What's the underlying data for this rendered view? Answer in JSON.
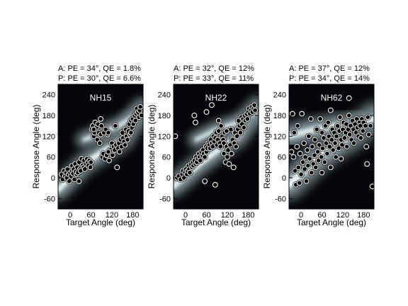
{
  "colors": {
    "background": "#ffffff",
    "plot_background": "#05050a",
    "density_core": "#f4fbfb",
    "density_mid": "#9fb7bd",
    "density_low": "#4a5257",
    "marker_fill": "#ffffff",
    "marker_edge": "#000000",
    "title_text": "#ffffff"
  },
  "chart_data": [
    {
      "type": "scatter",
      "title": "NH15",
      "stats": [
        "A: PE = 34°, QE = 1.8%",
        "P: PE = 30°, QE = 6.6%"
      ],
      "xlabel": "Target Angle (deg)",
      "ylabel": "Response Angle (deg)",
      "xlim": [
        -35,
        210
      ],
      "ylim": [
        -90,
        270
      ],
      "xticks": [
        0,
        60,
        120,
        180
      ],
      "yticks": [
        -60,
        0,
        60,
        120,
        180,
        240
      ],
      "xtick_labels": [
        "0",
        "60",
        "120",
        "180"
      ],
      "ytick_labels": [
        "-60",
        "0",
        "60",
        "120",
        "180",
        "240"
      ],
      "grid": false,
      "legend": "none",
      "background": "probability density (dark = low, light = high)",
      "density_bands": [
        {
          "path": [
            [
              -35,
              -35
            ],
            [
              40,
              40
            ],
            [
              100,
              80
            ],
            [
              150,
              110
            ],
            [
              210,
              200
            ]
          ],
          "width": 40
        },
        {
          "path": [
            [
              40,
              110
            ],
            [
              90,
              130
            ],
            [
              140,
              150
            ],
            [
              210,
              195
            ]
          ],
          "width": 30
        }
      ],
      "points": [
        [
          -25,
          10
        ],
        [
          -22,
          -5
        ],
        [
          -18,
          20
        ],
        [
          -15,
          5
        ],
        [
          -12,
          15
        ],
        [
          -10,
          0
        ],
        [
          -8,
          25
        ],
        [
          -5,
          10
        ],
        [
          -3,
          -10
        ],
        [
          0,
          15
        ],
        [
          2,
          5
        ],
        [
          5,
          20
        ],
        [
          5,
          35
        ],
        [
          8,
          12
        ],
        [
          10,
          25
        ],
        [
          12,
          -5
        ],
        [
          14,
          40
        ],
        [
          16,
          18
        ],
        [
          18,
          10
        ],
        [
          20,
          30
        ],
        [
          22,
          15
        ],
        [
          25,
          45
        ],
        [
          28,
          25
        ],
        [
          30,
          20
        ],
        [
          32,
          55
        ],
        [
          35,
          35
        ],
        [
          38,
          30
        ],
        [
          40,
          50
        ],
        [
          42,
          25
        ],
        [
          45,
          40
        ],
        [
          48,
          55
        ],
        [
          50,
          45
        ],
        [
          52,
          35
        ],
        [
          55,
          50
        ],
        [
          58,
          30
        ],
        [
          60,
          45
        ],
        [
          62,
          140
        ],
        [
          65,
          150
        ],
        [
          68,
          120
        ],
        [
          70,
          130
        ],
        [
          72,
          160
        ],
        [
          75,
          145
        ],
        [
          78,
          110
        ],
        [
          80,
          155
        ],
        [
          82,
          130
        ],
        [
          85,
          100
        ],
        [
          88,
          125
        ],
        [
          90,
          150
        ],
        [
          92,
          60
        ],
        [
          95,
          70
        ],
        [
          97,
          130
        ],
        [
          100,
          55
        ],
        [
          102,
          140
        ],
        [
          105,
          65
        ],
        [
          108,
          125
        ],
        [
          110,
          130
        ],
        [
          112,
          50
        ],
        [
          115,
          80
        ],
        [
          118,
          75
        ],
        [
          120,
          100
        ],
        [
          122,
          65
        ],
        [
          125,
          90
        ],
        [
          128,
          80
        ],
        [
          130,
          150
        ],
        [
          132,
          95
        ],
        [
          135,
          30
        ],
        [
          138,
          85
        ],
        [
          140,
          100
        ],
        [
          142,
          75
        ],
        [
          145,
          110
        ],
        [
          148,
          90
        ],
        [
          150,
          130
        ],
        [
          152,
          115
        ],
        [
          155,
          105
        ],
        [
          158,
          95
        ],
        [
          160,
          140
        ],
        [
          162,
          120
        ],
        [
          165,
          110
        ],
        [
          168,
          135
        ],
        [
          170,
          155
        ],
        [
          172,
          125
        ],
        [
          175,
          165
        ],
        [
          178,
          145
        ],
        [
          180,
          170
        ],
        [
          182,
          155
        ],
        [
          185,
          180
        ],
        [
          188,
          165
        ],
        [
          190,
          185
        ],
        [
          192,
          200
        ],
        [
          195,
          190
        ],
        [
          198,
          175
        ],
        [
          200,
          195
        ],
        [
          202,
          205
        ],
        [
          205,
          180
        ],
        [
          110,
          75
        ],
        [
          88,
          170
        ],
        [
          175,
          130
        ],
        [
          68,
          140
        ],
        [
          25,
          -10
        ]
      ]
    },
    {
      "type": "scatter",
      "title": "NH22",
      "stats": [
        "A: PE = 32°, QE = 12%",
        "P: PE = 33°, QE = 11%"
      ],
      "xlabel": "Target Angle (deg)",
      "ylabel": "Response Angle (deg)",
      "xlim": [
        -35,
        210
      ],
      "ylim": [
        -90,
        270
      ],
      "xticks": [
        0,
        60,
        120,
        180
      ],
      "yticks": [
        -60,
        0,
        60,
        120,
        180,
        240
      ],
      "xtick_labels": [
        "0",
        "60",
        "120",
        "180"
      ],
      "ytick_labels": [
        "-60",
        "0",
        "60",
        "120",
        "180",
        "240"
      ],
      "grid": false,
      "legend": "none",
      "background": "probability density (dark = low, light = high)",
      "density_bands": [
        {
          "path": [
            [
              -35,
              -25
            ],
            [
              40,
              40
            ],
            [
              100,
              85
            ],
            [
              150,
              120
            ],
            [
              210,
              205
            ]
          ],
          "width": 40
        },
        {
          "path": [
            [
              30,
              110
            ],
            [
              90,
              140
            ],
            [
              150,
              160
            ],
            [
              210,
              195
            ]
          ],
          "width": 30
        }
      ],
      "points": [
        [
          -30,
          120
        ],
        [
          -25,
          0
        ],
        [
          -20,
          5
        ],
        [
          -15,
          -5
        ],
        [
          -10,
          10
        ],
        [
          -8,
          20
        ],
        [
          -5,
          0
        ],
        [
          -2,
          15
        ],
        [
          0,
          25
        ],
        [
          3,
          10
        ],
        [
          5,
          20
        ],
        [
          8,
          35
        ],
        [
          10,
          25
        ],
        [
          12,
          15
        ],
        [
          15,
          40
        ],
        [
          18,
          30
        ],
        [
          20,
          45
        ],
        [
          22,
          35
        ],
        [
          25,
          50
        ],
        [
          28,
          40
        ],
        [
          30,
          60
        ],
        [
          32,
          45
        ],
        [
          35,
          55
        ],
        [
          38,
          70
        ],
        [
          40,
          60
        ],
        [
          42,
          50
        ],
        [
          45,
          75
        ],
        [
          48,
          65
        ],
        [
          50,
          80
        ],
        [
          52,
          70
        ],
        [
          55,
          60
        ],
        [
          58,
          90
        ],
        [
          60,
          75
        ],
        [
          62,
          85
        ],
        [
          65,
          100
        ],
        [
          68,
          95
        ],
        [
          70,
          85
        ],
        [
          72,
          110
        ],
        [
          75,
          100
        ],
        [
          78,
          90
        ],
        [
          80,
          120
        ],
        [
          82,
          105
        ],
        [
          85,
          115
        ],
        [
          88,
          130
        ],
        [
          90,
          95
        ],
        [
          92,
          110
        ],
        [
          95,
          135
        ],
        [
          98,
          100
        ],
        [
          100,
          90
        ],
        [
          102,
          150
        ],
        [
          105,
          120
        ],
        [
          108,
          110
        ],
        [
          110,
          100
        ],
        [
          112,
          130
        ],
        [
          115,
          45
        ],
        [
          118,
          90
        ],
        [
          120,
          60
        ],
        [
          122,
          80
        ],
        [
          125,
          40
        ],
        [
          128,
          95
        ],
        [
          130,
          140
        ],
        [
          132,
          70
        ],
        [
          135,
          110
        ],
        [
          138,
          30
        ],
        [
          140,
          100
        ],
        [
          142,
          130
        ],
        [
          145,
          90
        ],
        [
          148,
          120
        ],
        [
          150,
          140
        ],
        [
          152,
          165
        ],
        [
          155,
          150
        ],
        [
          158,
          130
        ],
        [
          160,
          175
        ],
        [
          162,
          155
        ],
        [
          165,
          170
        ],
        [
          168,
          145
        ],
        [
          170,
          180
        ],
        [
          172,
          165
        ],
        [
          175,
          185
        ],
        [
          178,
          170
        ],
        [
          180,
          190
        ],
        [
          182,
          200
        ],
        [
          185,
          185
        ],
        [
          188,
          195
        ],
        [
          190,
          205
        ],
        [
          192,
          190
        ],
        [
          195,
          200
        ],
        [
          198,
          210
        ],
        [
          200,
          195
        ],
        [
          60,
          190
        ],
        [
          25,
          180
        ],
        [
          28,
          160
        ],
        [
          75,
          210
        ],
        [
          55,
          -10
        ],
        [
          85,
          -20
        ],
        [
          118,
          135
        ],
        [
          95,
          165
        ],
        [
          110,
          70
        ]
      ]
    },
    {
      "type": "scatter",
      "title": "NH62",
      "stats": [
        "A: PE = 37°, QE = 12%",
        "P: PE = 34°, QE = 14%"
      ],
      "xlabel": "Target Angle (deg)",
      "ylabel": "Response Angle (deg)",
      "xlim": [
        -35,
        210
      ],
      "ylim": [
        -90,
        270
      ],
      "xticks": [
        0,
        60,
        120,
        180
      ],
      "yticks": [
        -60,
        0,
        60,
        120,
        180,
        240
      ],
      "xtick_labels": [
        "0",
        "60",
        "120",
        "180"
      ],
      "ytick_labels": [
        "-60",
        "0",
        "60",
        "120",
        "180",
        "240"
      ],
      "grid": false,
      "legend": "none",
      "background": "probability density (dark = low, light = high)",
      "density_bands": [
        {
          "path": [
            [
              -35,
              -20
            ],
            [
              40,
              50
            ],
            [
              100,
              95
            ],
            [
              150,
              125
            ],
            [
              210,
              175
            ]
          ],
          "width": 55
        },
        {
          "path": [
            [
              -35,
              120
            ],
            [
              40,
              140
            ],
            [
              100,
              150
            ],
            [
              150,
              155
            ],
            [
              210,
              170
            ]
          ],
          "width": 45
        }
      ],
      "points": [
        [
          -28,
          75
        ],
        [
          -25,
          185
        ],
        [
          -22,
          60
        ],
        [
          -20,
          130
        ],
        [
          -18,
          20
        ],
        [
          -15,
          -20
        ],
        [
          -12,
          90
        ],
        [
          -10,
          150
        ],
        [
          -8,
          30
        ],
        [
          -5,
          -15
        ],
        [
          -3,
          70
        ],
        [
          0,
          10
        ],
        [
          2,
          185
        ],
        [
          5,
          45
        ],
        [
          8,
          100
        ],
        [
          10,
          25
        ],
        [
          12,
          60
        ],
        [
          15,
          -10
        ],
        [
          18,
          80
        ],
        [
          20,
          35
        ],
        [
          22,
          120
        ],
        [
          25,
          55
        ],
        [
          28,
          170
        ],
        [
          30,
          15
        ],
        [
          32,
          90
        ],
        [
          35,
          40
        ],
        [
          38,
          65
        ],
        [
          40,
          110
        ],
        [
          42,
          30
        ],
        [
          45,
          140
        ],
        [
          48,
          75
        ],
        [
          50,
          50
        ],
        [
          52,
          95
        ],
        [
          55,
          170
        ],
        [
          58,
          60
        ],
        [
          60,
          130
        ],
        [
          62,
          85
        ],
        [
          65,
          115
        ],
        [
          68,
          45
        ],
        [
          70,
          150
        ],
        [
          72,
          100
        ],
        [
          75,
          70
        ],
        [
          78,
          160
        ],
        [
          80,
          120
        ],
        [
          82,
          90
        ],
        [
          85,
          195
        ],
        [
          88,
          110
        ],
        [
          90,
          140
        ],
        [
          92,
          80
        ],
        [
          95,
          130
        ],
        [
          98,
          100
        ],
        [
          100,
          60
        ],
        [
          102,
          120
        ],
        [
          105,
          150
        ],
        [
          108,
          85
        ],
        [
          110,
          135
        ],
        [
          112,
          175
        ],
        [
          115,
          110
        ],
        [
          118,
          95
        ],
        [
          120,
          140
        ],
        [
          122,
          160
        ],
        [
          125,
          115
        ],
        [
          128,
          130
        ],
        [
          130,
          155
        ],
        [
          132,
          90
        ],
        [
          135,
          140
        ],
        [
          138,
          180
        ],
        [
          140,
          125
        ],
        [
          142,
          150
        ],
        [
          145,
          110
        ],
        [
          148,
          165
        ],
        [
          150,
          140
        ],
        [
          152,
          100
        ],
        [
          155,
          155
        ],
        [
          158,
          130
        ],
        [
          160,
          170
        ],
        [
          162,
          145
        ],
        [
          165,
          120
        ],
        [
          168,
          160
        ],
        [
          170,
          150
        ],
        [
          172,
          115
        ],
        [
          175,
          170
        ],
        [
          178,
          135
        ],
        [
          180,
          160
        ],
        [
          185,
          150
        ],
        [
          188,
          90
        ],
        [
          190,
          40
        ],
        [
          192,
          175
        ],
        [
          195,
          125
        ],
        [
          200,
          150
        ],
        [
          205,
          -25
        ],
        [
          138,
          230
        ],
        [
          85,
          30
        ],
        [
          60,
          15
        ],
        [
          115,
          55
        ]
      ]
    }
  ]
}
